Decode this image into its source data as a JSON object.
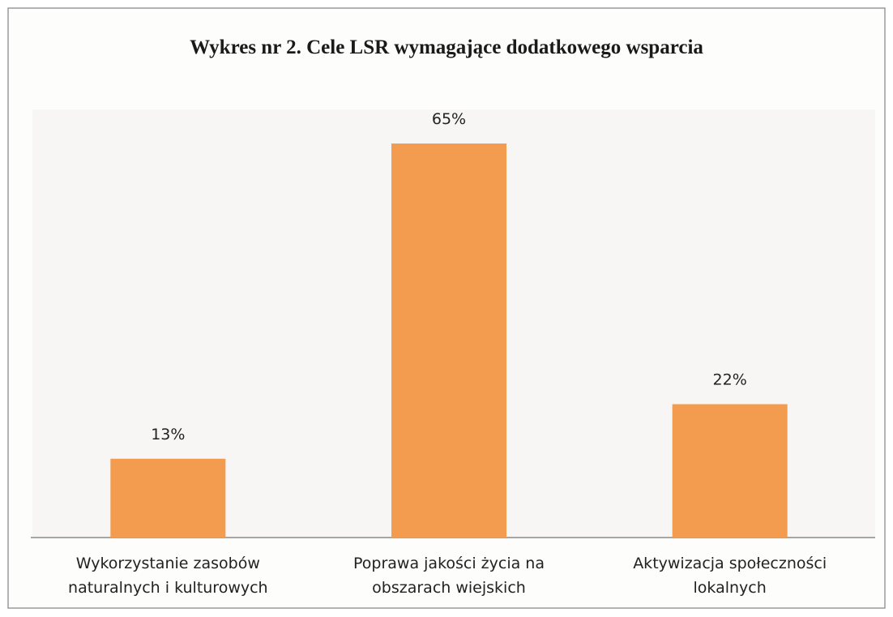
{
  "chart_data": {
    "type": "bar",
    "title": "Wykres nr 2. Cele LSR wymagające dodatkowego wsparcia",
    "categories": [
      "Wykorzystanie zasobów naturalnych i kulturowych",
      "Poprawa jakości życia na obszarach wiejskich",
      "Aktywizacja społeczności lokalnych"
    ],
    "values": [
      13,
      65,
      22
    ],
    "value_labels": [
      "13%",
      "65%",
      "22%"
    ],
    "color": "#f39b4e"
  }
}
